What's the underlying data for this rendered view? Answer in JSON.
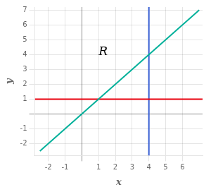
{
  "chart_data": {
    "type": "line",
    "xlabel": "x",
    "ylabel": "y",
    "xlim": [
      -2.8,
      7.2
    ],
    "ylim": [
      -2.8,
      7.2
    ],
    "xticks": [
      -2,
      -1,
      {
        "value": 0,
        "label": null
      },
      1,
      2,
      3,
      4,
      5,
      6
    ],
    "yticks": [
      -2,
      -1,
      {
        "value": 0,
        "label": null
      },
      1,
      2,
      3,
      4,
      5,
      6,
      7
    ],
    "grid": true,
    "series": [
      {
        "color": "#00b09a",
        "x": [
          -2.5,
          7.0
        ],
        "values": [
          -2.5,
          7.0
        ]
      },
      {
        "color": "#e8000d",
        "x": [
          -2.8,
          7.2
        ],
        "values": [
          1,
          1
        ]
      },
      {
        "color": "#3a60d4",
        "x": [
          4,
          4
        ],
        "values": [
          -2.8,
          7.2
        ]
      }
    ],
    "annotations": [
      {
        "text": "R",
        "x": 1.0,
        "y": 4.2
      }
    ]
  }
}
